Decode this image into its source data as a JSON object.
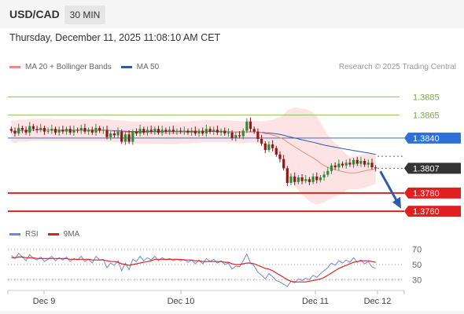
{
  "header": {
    "symbol": "USD/CAD",
    "timeframe": "30 MIN",
    "datetime": "Thursday, December 11, 2025 11:08:10 AM CET"
  },
  "legend": {
    "ma20_label": "MA 20 + Bollinger Bands",
    "ma50_label": "MA 50",
    "copyright": "Research © 2025 Trading Central"
  },
  "rsi_legend": {
    "rsi_label": "RSI",
    "ma_label": "9MA"
  },
  "colors": {
    "ma20": "#f08a8a",
    "ma50": "#2e5aa8",
    "bollinger_fill": "#fde0e0",
    "candle_up": "#2e8b3a",
    "candle_down": "#8b1a1a",
    "resistance": "#8cc152",
    "pivot": "#2f6fd8",
    "support": "#e02020",
    "current": "#333333",
    "rsi": "#6f87d6",
    "rsi_ma": "#e02020",
    "arrow": "#2e5aa8"
  },
  "chart_data": [
    {
      "type": "candlestick",
      "x_tick_labels": [
        "Dec 9",
        "Dec 10",
        "Dec 11",
        "Dec 12"
      ],
      "levels": [
        {
          "value": 1.3885,
          "label": "1.3885",
          "kind": "resistance"
        },
        {
          "value": 1.3865,
          "label": "1.3865",
          "kind": "resistance"
        },
        {
          "value": 1.384,
          "label": "1.3840",
          "kind": "pivot"
        },
        {
          "value": 1.3807,
          "label": "1.3807",
          "kind": "current"
        },
        {
          "value": 1.378,
          "label": "1.3780",
          "kind": "support"
        },
        {
          "value": 1.376,
          "label": "1.3760",
          "kind": "support"
        }
      ],
      "price_range": [
        1.3755,
        1.3905
      ],
      "projection_target": 1.3763,
      "close": [
        1.3848,
        1.3845,
        1.3851,
        1.3849,
        1.3846,
        1.3853,
        1.385,
        1.3849,
        1.3851,
        1.3847,
        1.3848,
        1.385,
        1.3846,
        1.3849,
        1.3847,
        1.385,
        1.3846,
        1.3849,
        1.3848,
        1.3851,
        1.3847,
        1.3849,
        1.3846,
        1.3851,
        1.3848,
        1.3849,
        1.3841,
        1.3845,
        1.3843,
        1.3847,
        1.3836,
        1.3844,
        1.3836,
        1.3847,
        1.3845,
        1.385,
        1.3846,
        1.3849,
        1.3847,
        1.385,
        1.3846,
        1.3849,
        1.3847,
        1.3849,
        1.3847,
        1.3848,
        1.3847,
        1.3848,
        1.3846,
        1.3848,
        1.3845,
        1.3848,
        1.3845,
        1.385,
        1.3847,
        1.3849,
        1.3846,
        1.3848,
        1.3845,
        1.3846,
        1.384,
        1.3843,
        1.3842,
        1.3848,
        1.3858,
        1.385,
        1.3847,
        1.3839,
        1.3834,
        1.3827,
        1.3833,
        1.3829,
        1.3822,
        1.3817,
        1.3807,
        1.3791,
        1.3798,
        1.3792,
        1.3797,
        1.3793,
        1.3795,
        1.3792,
        1.3798,
        1.3794,
        1.3797,
        1.38,
        1.3804,
        1.381,
        1.3808,
        1.3812,
        1.381,
        1.3813,
        1.3811,
        1.3816,
        1.3812,
        1.3815,
        1.3811,
        1.3813,
        1.3808,
        1.3807
      ],
      "ma20_label": "MA 20 + Bollinger Bands",
      "ma50_label": "MA 50"
    },
    {
      "type": "line",
      "name": "RSI",
      "y_ticks": [
        70,
        50,
        30
      ],
      "ylim": [
        20,
        78
      ],
      "series": [
        {
          "name": "RSI",
          "values": [
            62,
            58,
            65,
            60,
            55,
            63,
            58,
            56,
            60,
            54,
            57,
            61,
            55,
            59,
            56,
            60,
            54,
            58,
            56,
            61,
            54,
            57,
            52,
            61,
            56,
            57,
            46,
            52,
            49,
            55,
            42,
            52,
            43,
            57,
            54,
            61,
            55,
            59,
            56,
            61,
            55,
            59,
            56,
            58,
            55,
            57,
            55,
            57,
            53,
            56,
            51,
            56,
            51,
            58,
            54,
            57,
            52,
            55,
            50,
            52,
            44,
            48,
            47,
            55,
            64,
            52,
            48,
            40,
            36,
            31,
            38,
            34,
            29,
            27,
            24,
            21,
            28,
            26,
            31,
            29,
            32,
            30,
            36,
            33,
            38,
            42,
            46,
            52,
            49,
            55,
            52,
            56,
            53,
            59,
            53,
            56,
            51,
            54,
            47,
            45
          ]
        },
        {
          "name": "9MA",
          "values": [
            59,
            59,
            60,
            60,
            59,
            59,
            59,
            58,
            58,
            58,
            58,
            58,
            58,
            58,
            58,
            58,
            57,
            57,
            57,
            57,
            57,
            57,
            56,
            56,
            56,
            56,
            55,
            54,
            54,
            53,
            51,
            50,
            49,
            50,
            51,
            52,
            53,
            54,
            55,
            57,
            57,
            57,
            57,
            57,
            57,
            57,
            57,
            56,
            56,
            56,
            55,
            55,
            54,
            54,
            54,
            54,
            54,
            54,
            53,
            53,
            51,
            50,
            50,
            51,
            52,
            52,
            51,
            49,
            47,
            45,
            44,
            42,
            39,
            36,
            33,
            30,
            28,
            27,
            27,
            27,
            27,
            28,
            29,
            30,
            31,
            33,
            36,
            39,
            42,
            45,
            47,
            49,
            51,
            53,
            54,
            55,
            55,
            55,
            54,
            53
          ]
        }
      ]
    }
  ]
}
